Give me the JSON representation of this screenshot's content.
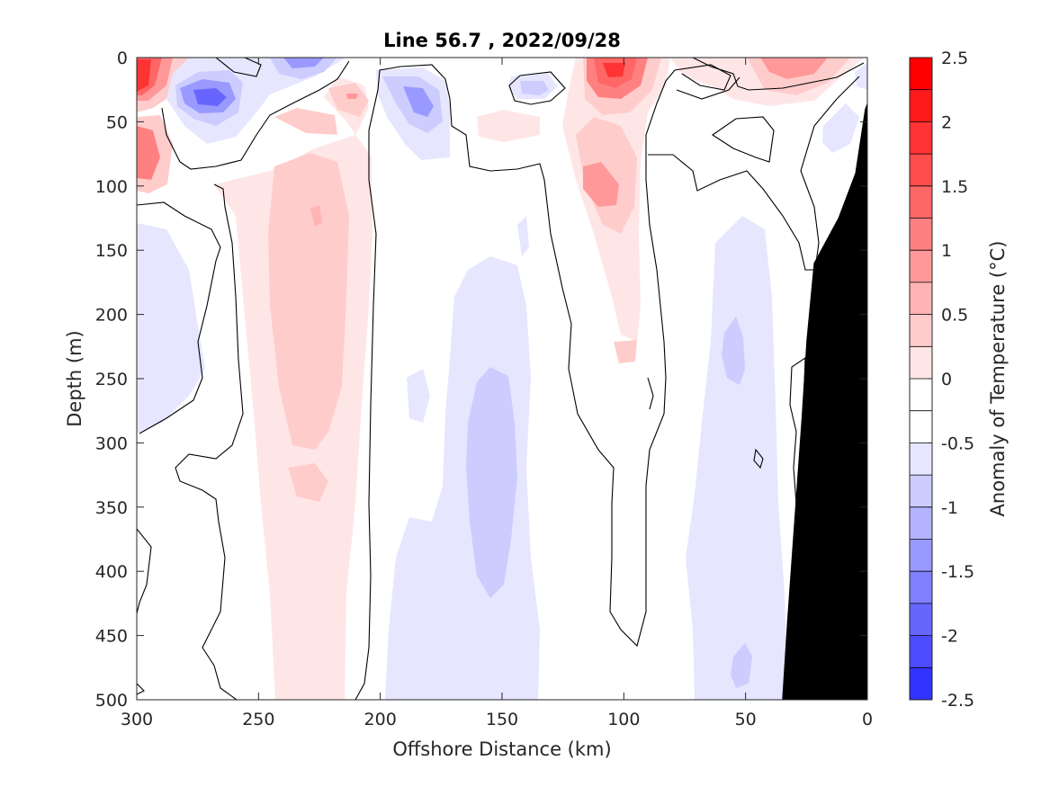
{
  "chart_data": {
    "type": "heatmap",
    "subtype": "filled-contour",
    "title": "Line 56.7 , 2022/09/28",
    "xlabel": "Offshore Distance (km)",
    "ylabel": "Depth (m)",
    "xlim": [
      300,
      0
    ],
    "ylim": [
      0,
      500
    ],
    "x_reversed": true,
    "y_reversed": true,
    "x_ticks": [
      300,
      250,
      200,
      150,
      100,
      50,
      0
    ],
    "y_ticks": [
      0,
      50,
      100,
      150,
      200,
      250,
      300,
      350,
      400,
      450,
      500
    ],
    "grid": false,
    "colorbar": {
      "label": "Anomaly of Temperature (°C)",
      "range": [
        -2.5,
        2.5
      ],
      "ticks": [
        2.5,
        2,
        1.5,
        1,
        0.5,
        0,
        -0.5,
        -1,
        -1.5,
        -2,
        -2.5
      ],
      "tick_labels": [
        "2.5",
        "2",
        "1.5",
        "1",
        "0.5",
        "0",
        "-0.5",
        "-1",
        "-1.5",
        "-2",
        "-2.5"
      ],
      "levels": [
        2.5,
        2.25,
        2.0,
        1.75,
        1.5,
        1.25,
        1.0,
        0.75,
        0.5,
        0.25,
        0.0,
        -0.25,
        -0.5,
        -0.75,
        -1.0,
        -1.25,
        -1.5,
        -1.75,
        -2.0,
        -2.25,
        -2.5
      ],
      "colors": [
        "#ff0000",
        "#ff1a1a",
        "#ff3333",
        "#ff4d4d",
        "#ff6666",
        "#ff8080",
        "#ff9999",
        "#ffb3b3",
        "#ffcccc",
        "#ffe6e6",
        "#ffffff",
        "#ffffff",
        "#e6e6ff",
        "#ccccff",
        "#b3b3ff",
        "#9999ff",
        "#8080ff",
        "#6666ff",
        "#4d4dff",
        "#3333ff",
        "#0000ff"
      ]
    },
    "zero_contour_color": "#000000",
    "land_color": "#000000",
    "land_boundary": [
      [
        35,
        500
      ],
      [
        33,
        440
      ],
      [
        30,
        360
      ],
      [
        27,
        280
      ],
      [
        25,
        220
      ],
      [
        22,
        160
      ],
      [
        12,
        125
      ],
      [
        5,
        90
      ],
      [
        1,
        40
      ],
      [
        0,
        35
      ]
    ],
    "anomaly_features": [
      {
        "x": 298,
        "y": 15,
        "value": 2.3
      },
      {
        "x": 295,
        "y": 75,
        "value": 1.0
      },
      {
        "x": 270,
        "y": 28,
        "value": -1.8
      },
      {
        "x": 235,
        "y": 5,
        "value": -1.2
      },
      {
        "x": 228,
        "y": 200,
        "value": 0.75
      },
      {
        "x": 225,
        "y": 125,
        "value": 0.9
      },
      {
        "x": 230,
        "y": 330,
        "value": 0.75
      },
      {
        "x": 215,
        "y": 30,
        "value": 0.6
      },
      {
        "x": 185,
        "y": 30,
        "value": -1.0
      },
      {
        "x": 155,
        "y": 320,
        "value": -0.8
      },
      {
        "x": 140,
        "y": 25,
        "value": -0.7
      },
      {
        "x": 100,
        "y": 10,
        "value": 2.0
      },
      {
        "x": 105,
        "y": 100,
        "value": 1.1
      },
      {
        "x": 30,
        "y": 5,
        "value": 1.0
      },
      {
        "x": 55,
        "y": 230,
        "value": -0.8
      },
      {
        "x": 55,
        "y": 475,
        "value": -0.8
      },
      {
        "x": 280,
        "y": 220,
        "value": -0.5
      }
    ]
  }
}
